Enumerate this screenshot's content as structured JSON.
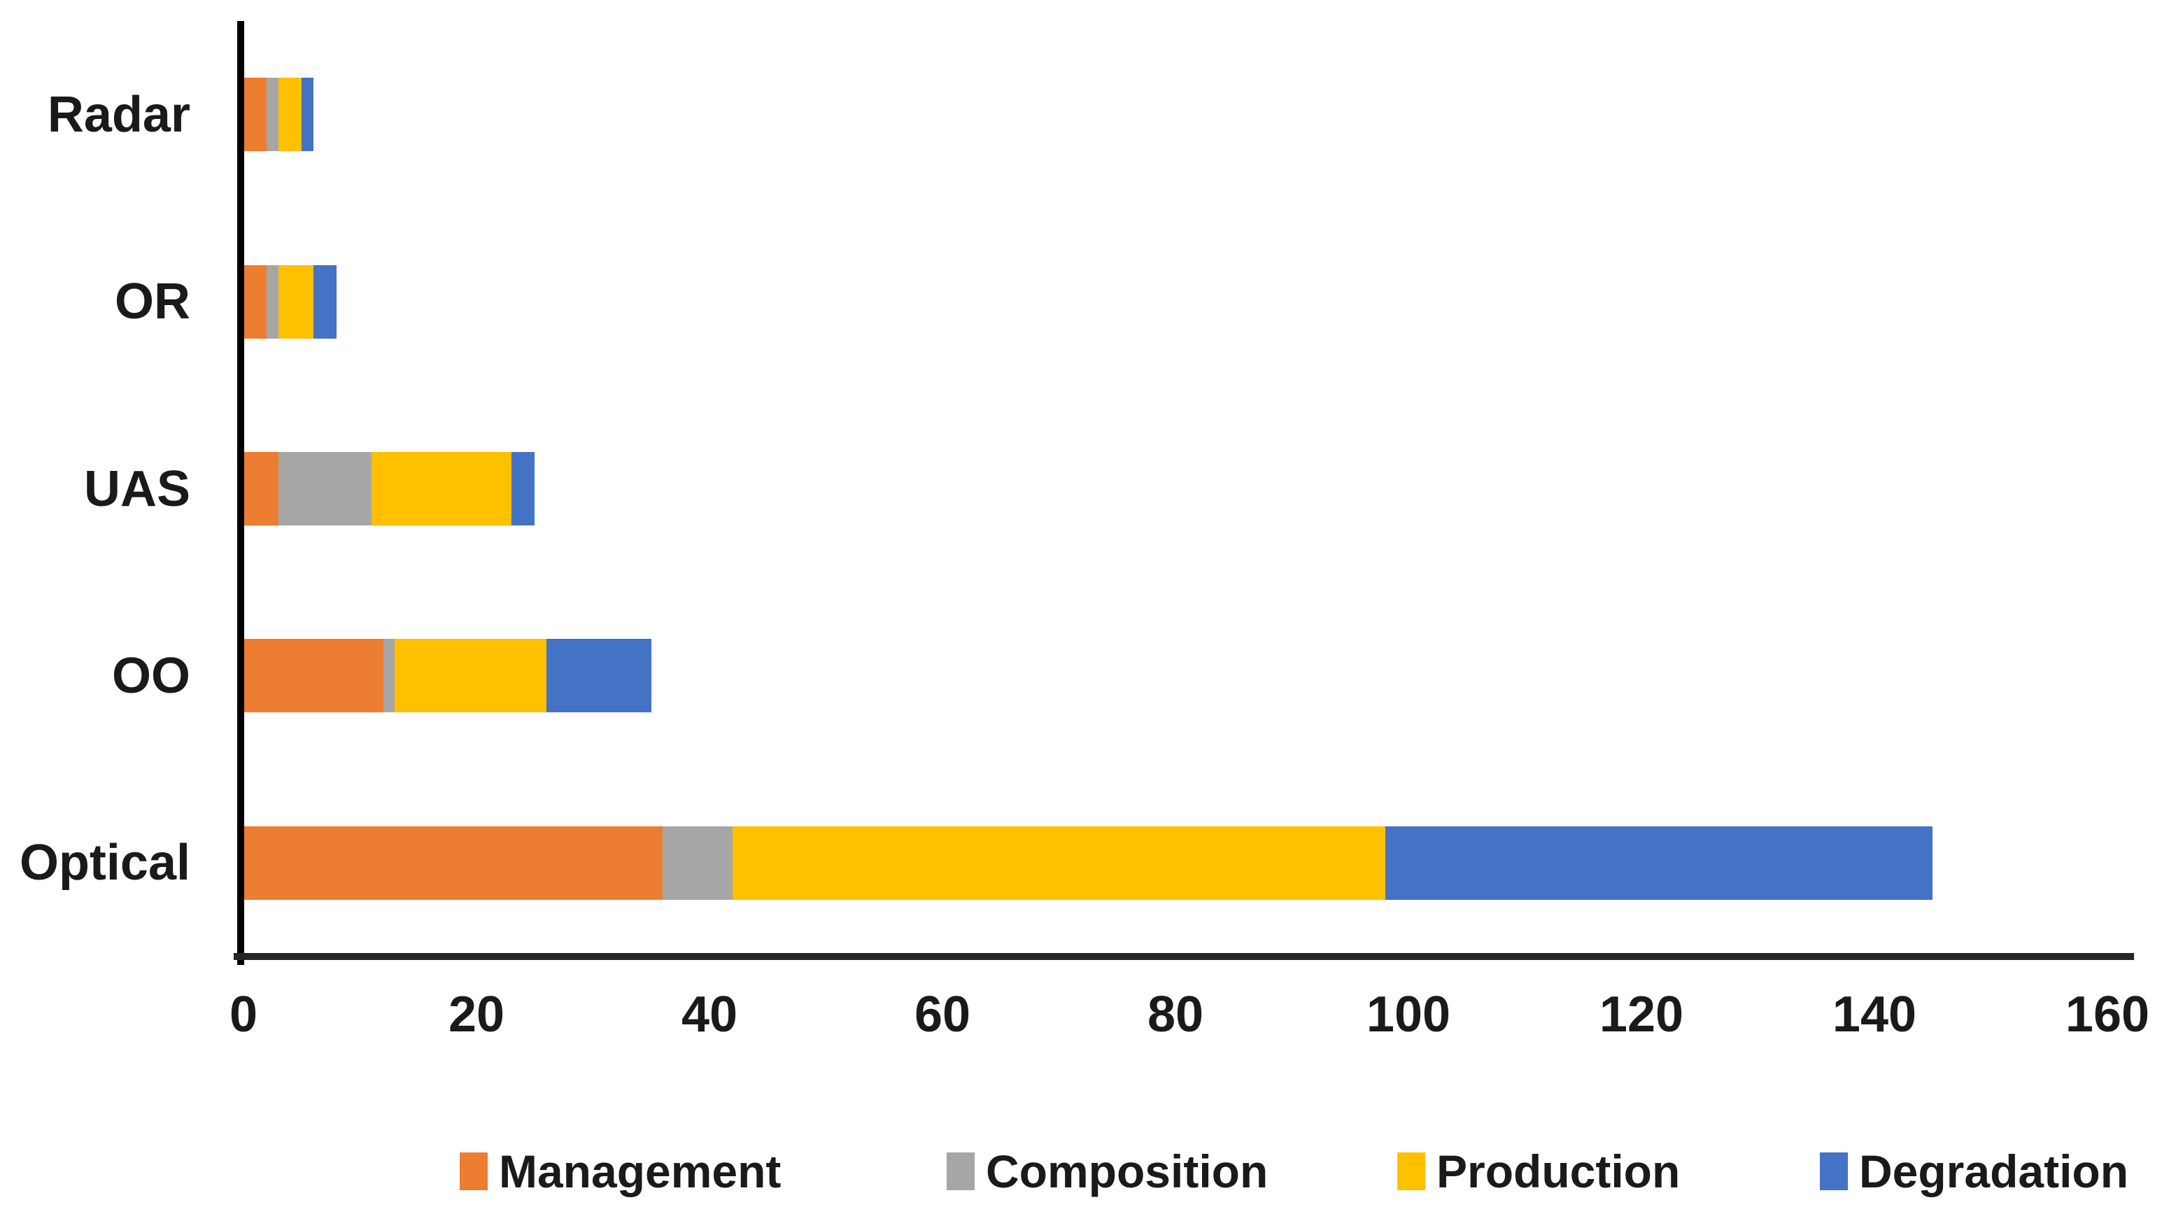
{
  "chart_data": {
    "type": "bar",
    "orientation": "horizontal",
    "stacked": true,
    "title": "",
    "xlabel": "",
    "ylabel": "",
    "grid": false,
    "legend_position": "bottom",
    "xlim": [
      0,
      160
    ],
    "x_tick_labels": [
      "0",
      "20",
      "40",
      "60",
      "80",
      "100",
      "120",
      "140",
      "160"
    ],
    "x_tick_values": [
      0,
      20,
      40,
      60,
      80,
      100,
      120,
      140,
      160
    ],
    "categories": [
      "Radar",
      "OR",
      "UAS",
      "OO",
      "Optical"
    ],
    "series": [
      {
        "name": "Management",
        "color": "#ED7D31",
        "values": [
          2,
          2,
          3,
          12,
          36
        ]
      },
      {
        "name": "Composition",
        "color": "#A6A6A6",
        "values": [
          1,
          1,
          8,
          1,
          6
        ]
      },
      {
        "name": "Production",
        "color": "#FFC000",
        "values": [
          2,
          3,
          12,
          13,
          56
        ]
      },
      {
        "name": "Degradation",
        "color": "#4472C4",
        "values": [
          1,
          2,
          2,
          9,
          47
        ]
      }
    ],
    "category_totals": [
      6,
      8,
      25,
      35,
      145
    ]
  },
  "colors": {
    "background": "#FFFFFF",
    "text": "#1A1A1A",
    "y_axis": "#000000",
    "x_axis": "#262626"
  },
  "legend": {
    "labels": [
      "Management",
      "Composition",
      "Production",
      "Degradation"
    ]
  }
}
